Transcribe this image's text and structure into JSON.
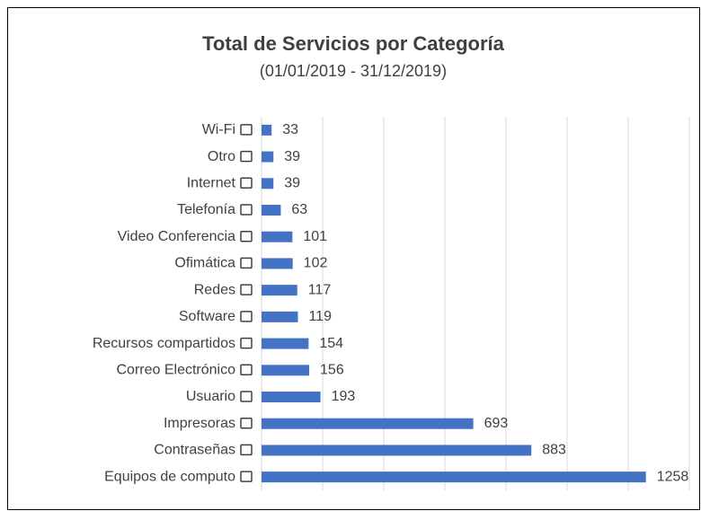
{
  "chart_data": {
    "type": "barh",
    "title": "Total de Servicios por Categoría",
    "subtitle": "(01/01/2019 - 31/12/2019)",
    "categories": [
      "Wi-Fi",
      "Otro",
      "Internet",
      "Telefonía",
      "Video Conferencia",
      "Ofimática",
      "Redes",
      "Software",
      "Recursos compartidos",
      "Correo Electrónico",
      "Usuario",
      "Impresoras",
      "Contraseñas",
      "Equipos de computo"
    ],
    "values": [
      33,
      39,
      39,
      63,
      101,
      102,
      117,
      119,
      154,
      156,
      193,
      693,
      883,
      1258
    ],
    "color": "#4472c4",
    "xlim": [
      0,
      1400
    ],
    "xticks": [
      0,
      200,
      400,
      600,
      800,
      1000,
      1200,
      1400
    ],
    "grid": true
  }
}
